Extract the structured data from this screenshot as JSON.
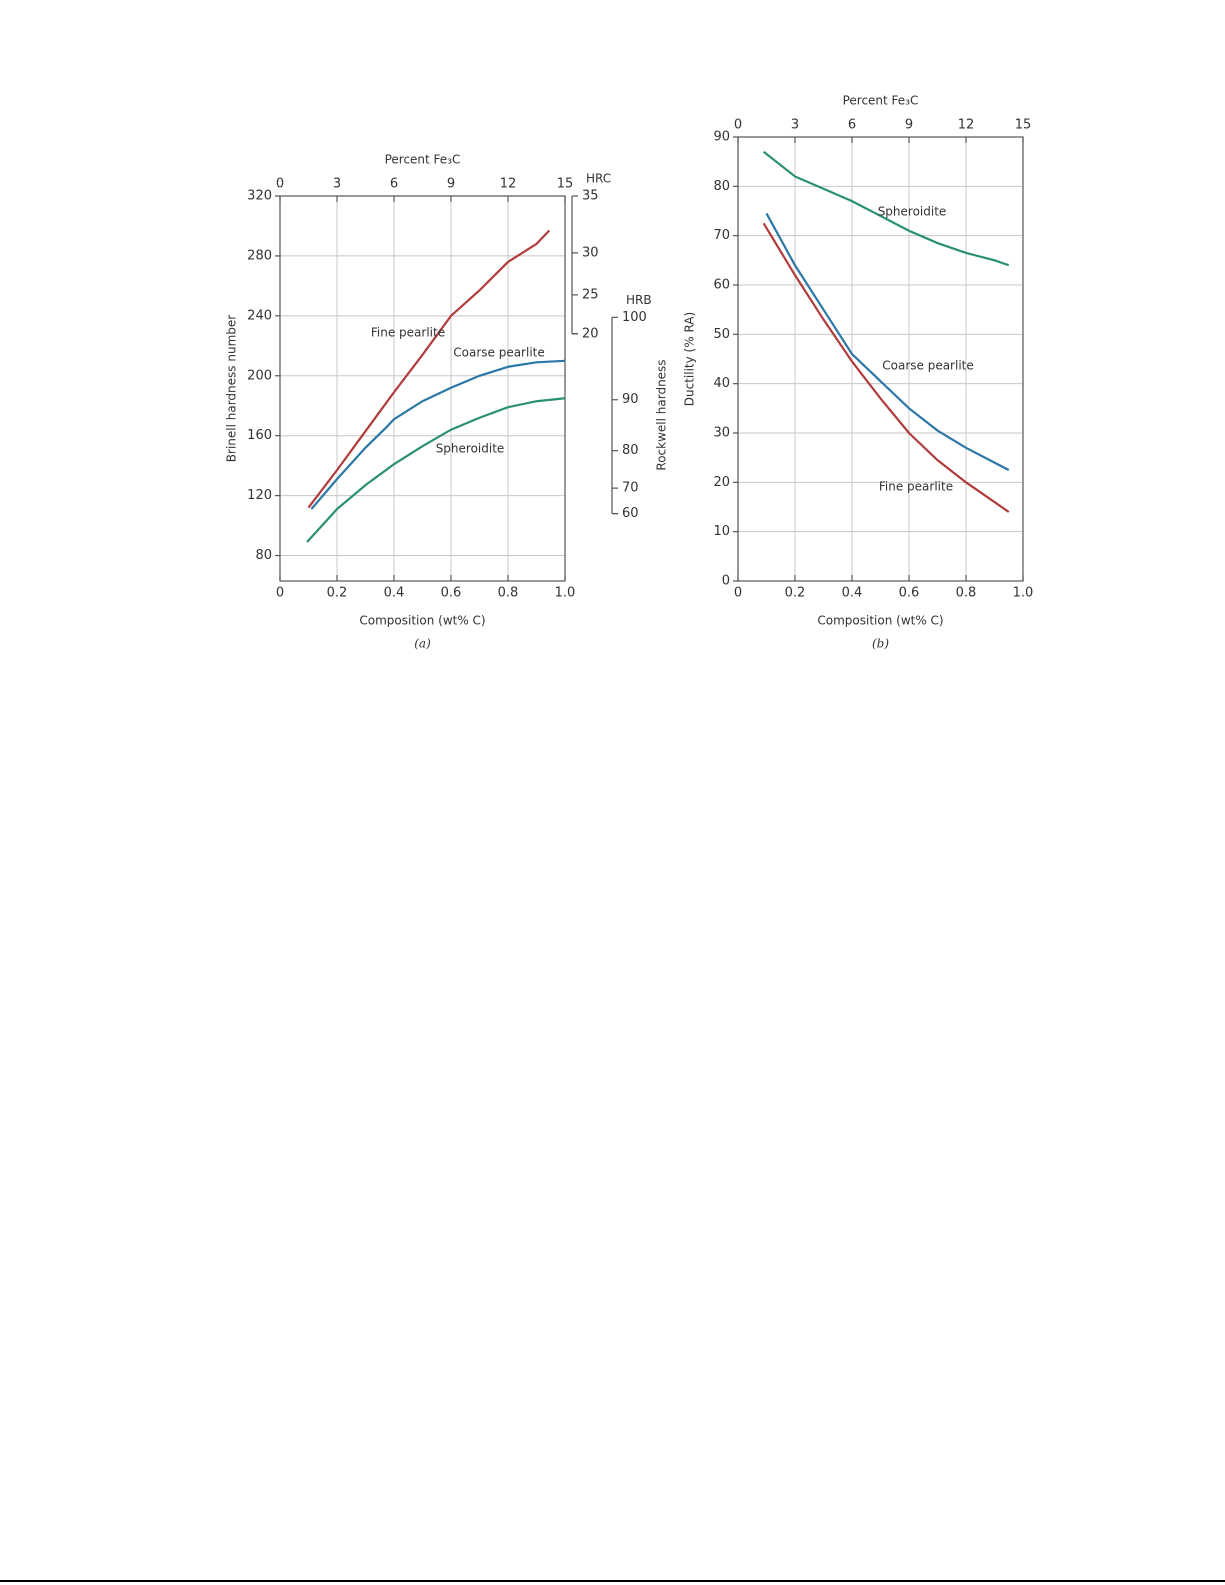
{
  "chart_data": [
    {
      "type": "line",
      "panel_label": "(a)",
      "x_label": "Composition (wt% C)",
      "y_label": "Brinell hardness number",
      "x2_label": "Percent Fe₃C",
      "xlim": [
        0,
        1
      ],
      "xticks": [
        0,
        0.2,
        0.4,
        0.6,
        0.8,
        {
          "value": 1,
          "label": "1.0"
        }
      ],
      "ylim": [
        63,
        320
      ],
      "yticks": [
        80,
        120,
        160,
        200,
        240,
        280,
        320
      ],
      "x2lim": [
        0,
        15
      ],
      "x2ticks": [
        0,
        3,
        6,
        9,
        12,
        15
      ],
      "grid": true,
      "aux_label": "Rockwell hardness",
      "aux_scales": [
        {
          "name": "HRC",
          "ticks": [
            {
              "value": 320,
              "label": "35"
            },
            {
              "value": 282,
              "label": "30"
            },
            {
              "value": 254,
              "label": "25"
            },
            {
              "value": 228,
              "label": "20"
            }
          ]
        },
        {
          "name": "HRB",
          "ticks": [
            {
              "value": 239,
              "label": "100"
            },
            {
              "value": 184,
              "label": "90"
            },
            {
              "value": 150,
              "label": "80"
            },
            {
              "value": 125,
              "label": "70"
            },
            {
              "value": 108,
              "label": "60"
            }
          ]
        }
      ],
      "series": [
        {
          "name": "Fine pearlite",
          "color": "#b23b3b",
          "x": [
            0.1,
            0.2,
            0.3,
            0.4,
            0.5,
            0.6,
            0.7,
            0.8,
            0.9,
            0.945
          ],
          "values": [
            112,
            137,
            163,
            189,
            214,
            240,
            257,
            276,
            288,
            297
          ]
        },
        {
          "name": "Coarse pearlite",
          "color": "#2b78a8",
          "x": [
            0.11,
            0.2,
            0.3,
            0.37,
            0.4,
            0.5,
            0.6,
            0.7,
            0.8,
            0.9,
            1.0
          ],
          "values": [
            111,
            131,
            152,
            165,
            171,
            183,
            192,
            200,
            206,
            209,
            210
          ]
        },
        {
          "name": "Spheroidite",
          "color": "#2a9072",
          "x": [
            0.095,
            0.2,
            0.3,
            0.4,
            0.5,
            0.6,
            0.7,
            0.8,
            0.9,
            1.0
          ],
          "values": [
            89,
            111,
            127,
            141,
            153,
            164,
            172,
            179,
            183,
            185
          ]
        }
      ]
    },
    {
      "type": "line",
      "panel_label": "(b)",
      "x_label": "Composition (wt% C)",
      "y_label": "Ductility (% RA)",
      "x2_label": "Percent Fe₃C",
      "xlim": [
        0,
        1
      ],
      "xticks": [
        0,
        0.2,
        0.4,
        0.6,
        0.8,
        {
          "value": 1,
          "label": "1.0"
        }
      ],
      "ylim": [
        0,
        90
      ],
      "yticks": [
        0,
        10,
        20,
        30,
        40,
        50,
        60,
        70,
        80,
        90
      ],
      "x2lim": [
        0,
        15
      ],
      "x2ticks": [
        0,
        3,
        6,
        9,
        12,
        15
      ],
      "grid": true,
      "series": [
        {
          "name": "Spheroidite",
          "color": "#2a9072",
          "x": [
            0.09,
            0.2,
            0.3,
            0.4,
            0.5,
            0.6,
            0.7,
            0.8,
            0.9,
            0.95
          ],
          "values": [
            87,
            82,
            79.5,
            77,
            74,
            71,
            68.5,
            66.5,
            65,
            64
          ]
        },
        {
          "name": "Coarse pearlite",
          "color": "#2b78a8",
          "x": [
            0.1,
            0.2,
            0.3,
            0.4,
            0.5,
            0.6,
            0.7,
            0.8,
            0.9,
            0.95
          ],
          "values": [
            74.5,
            64,
            55,
            46,
            40.5,
            35,
            30.5,
            27,
            24,
            22.5
          ]
        },
        {
          "name": "Fine pearlite",
          "color": "#b23b3b",
          "x": [
            0.09,
            0.2,
            0.3,
            0.4,
            0.5,
            0.6,
            0.7,
            0.8,
            0.9,
            0.95
          ],
          "values": [
            72.5,
            62,
            53,
            44.5,
            37,
            30,
            24.5,
            20,
            16,
            14
          ]
        }
      ]
    }
  ]
}
